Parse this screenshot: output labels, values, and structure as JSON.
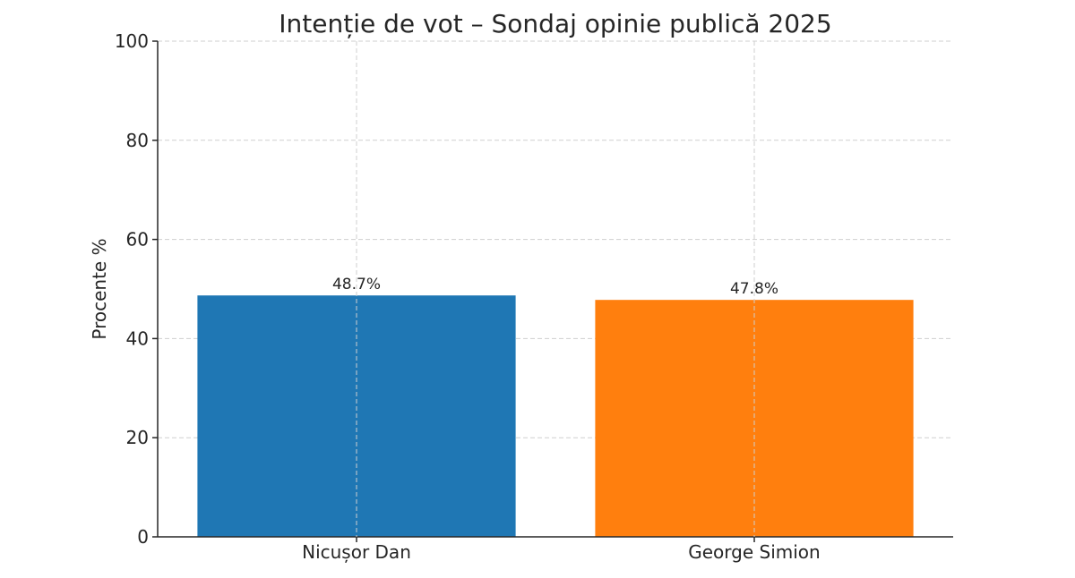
{
  "chart_data": {
    "type": "bar",
    "title": "Intenție de vot – Sondaj opinie publică 2025",
    "xlabel": "",
    "ylabel": "Procente %",
    "categories": [
      "Nicușor Dan",
      "George Simion"
    ],
    "values": [
      48.7,
      47.8
    ],
    "value_labels": [
      "48.7%",
      "47.8%"
    ],
    "colors": [
      "#1f77b4",
      "#ff7f0e"
    ],
    "ylim": [
      0,
      100
    ],
    "yticks": [
      0,
      20,
      40,
      60,
      80,
      100
    ],
    "grid": true,
    "legend": "none"
  }
}
